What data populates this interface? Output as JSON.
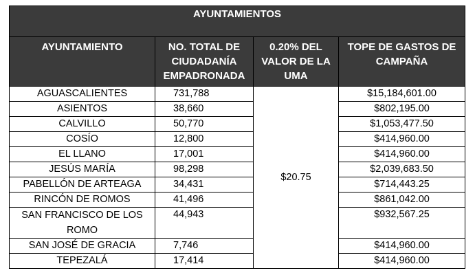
{
  "table": {
    "title": "AYUNTAMIENTOS",
    "headers": [
      "AYUNTAMIENTO",
      "NO. TOTAL DE CIUDADANÍA EMPADRONADA",
      "0.20% DEL VALOR DE LA UMA",
      "TOPE DE GASTOS DE CAMPAÑA"
    ],
    "uma_value": "$20.75",
    "rows": [
      {
        "name": "AGUASCALIENTES",
        "total": "731,788",
        "tope": "$15,184,601.00"
      },
      {
        "name": "ASIENTOS",
        "total": "38,660",
        "tope": "$802,195.00"
      },
      {
        "name": "CALVILLO",
        "total": "50,770",
        "tope": "$1,053,477.50"
      },
      {
        "name": "COSÍO",
        "total": "12,800",
        "tope": "$414,960.00"
      },
      {
        "name": "EL LLANO",
        "total": "17,001",
        "tope": "$414,960.00"
      },
      {
        "name": "JESÚS MARÍA",
        "total": "98,298",
        "tope": "$2,039,683.50"
      },
      {
        "name": "PABELLÓN DE ARTEAGA",
        "total": "34,431",
        "tope": "$714,443.25"
      },
      {
        "name": "RINCÓN DE ROMOS",
        "total": "41,496",
        "tope": "$861,042.00"
      },
      {
        "name": "SAN FRANCISCO DE LOS ROMO",
        "total": "44,943",
        "tope": "$932,567.25"
      },
      {
        "name": "SAN JOSÉ DE GRACIA",
        "total": "7,746",
        "tope": "$414,960.00"
      },
      {
        "name": "TEPEZALÁ",
        "total": "17,414",
        "tope": "$414,960.00"
      }
    ]
  }
}
